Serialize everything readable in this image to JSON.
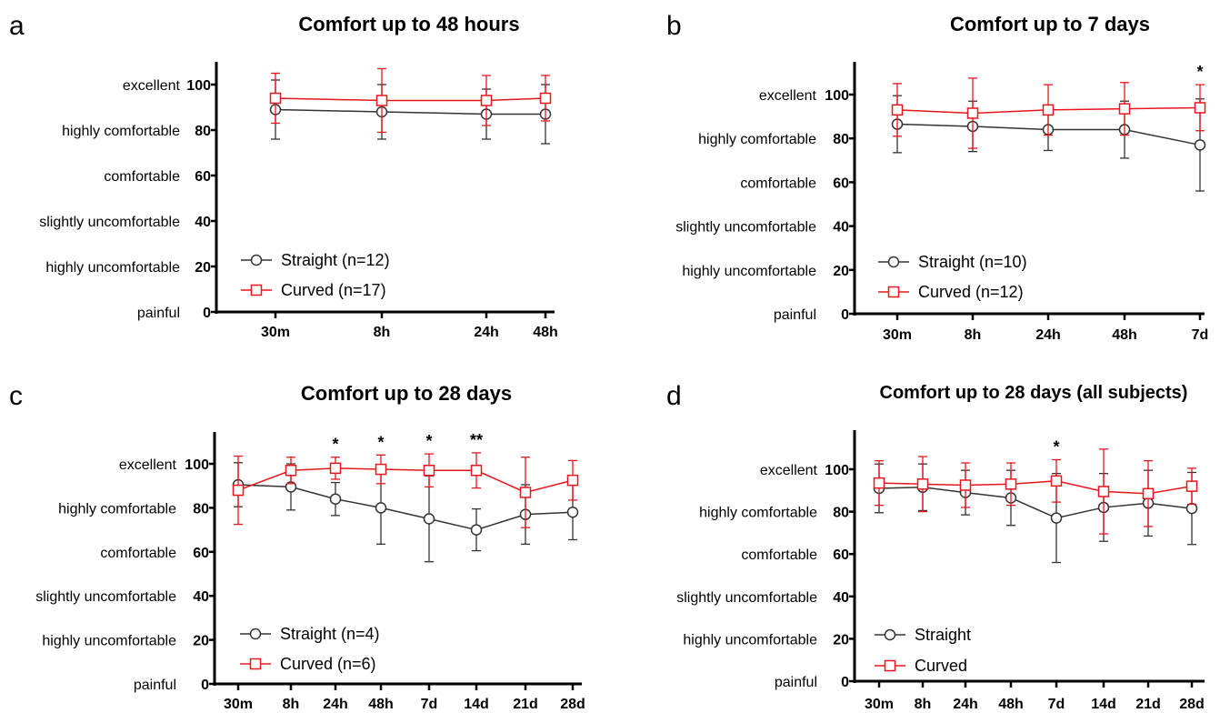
{
  "chart_data": [
    {
      "type": "line",
      "panel_label": "a",
      "title": "Comfort up to 48 hours",
      "categories": [
        "30m",
        "8h",
        "24h",
        "48h"
      ],
      "y_ticks": [
        0,
        20,
        40,
        60,
        80,
        100
      ],
      "y_category_labels": [
        "painful",
        "highly uncomfortable",
        "slightly uncomfortable",
        "comfortable",
        "highly comfortable",
        "excellent"
      ],
      "ylim": [
        0,
        110
      ],
      "legend_position": "bottom-left",
      "series": [
        {
          "name": "Straight (n=12)",
          "color": "#333333",
          "marker": "circle",
          "values": [
            89,
            88,
            87,
            87
          ],
          "error": [
            13,
            12,
            11,
            13
          ]
        },
        {
          "name": "Curved (n=17)",
          "color": "#e8161c",
          "marker": "square",
          "values": [
            94,
            93,
            93,
            94
          ],
          "error": [
            11,
            14,
            11,
            10
          ]
        }
      ],
      "annotations": []
    },
    {
      "type": "line",
      "panel_label": "b",
      "title": "Comfort up to 7 days",
      "categories": [
        "30m",
        "8h",
        "24h",
        "48h",
        "7d"
      ],
      "y_ticks": [
        0,
        20,
        40,
        60,
        80,
        100
      ],
      "y_category_labels": [
        "painful",
        "highly uncomfortable",
        "slightly uncomfortable",
        "comfortable",
        "highly comfortable",
        "excellent"
      ],
      "ylim": [
        0,
        115
      ],
      "legend_position": "bottom-left",
      "series": [
        {
          "name": "Straight (n=10)",
          "color": "#333333",
          "marker": "circle",
          "values": [
            86.5,
            85.5,
            84,
            84,
            77
          ],
          "error": [
            13,
            11.5,
            9.5,
            13,
            21
          ]
        },
        {
          "name": "Curved (n=12)",
          "color": "#e8161c",
          "marker": "square",
          "values": [
            93,
            91.5,
            93,
            93.5,
            94
          ],
          "error": [
            12,
            16,
            11.5,
            12,
            10.5
          ]
        }
      ],
      "annotations": [
        {
          "category": "7d",
          "text": "*"
        }
      ]
    },
    {
      "type": "line",
      "panel_label": "c",
      "title": "Comfort up to 28 days",
      "categories": [
        "30m",
        "8h",
        "24h",
        "48h",
        "7d",
        "14d",
        "21d",
        "28d"
      ],
      "y_ticks": [
        0,
        20,
        40,
        60,
        80,
        100
      ],
      "y_category_labels": [
        "painful",
        "highly uncomfortable",
        "slightly uncomfortable",
        "comfortable",
        "highly comfortable",
        "excellent"
      ],
      "ylim": [
        0,
        115
      ],
      "legend_position": "bottom-left",
      "series": [
        {
          "name": "Straight (n=4)",
          "color": "#333333",
          "marker": "circle",
          "values": [
            90.5,
            89.5,
            84,
            80,
            75,
            70,
            77,
            78
          ],
          "error": [
            10,
            10.5,
            7.5,
            16.5,
            19.5,
            9.5,
            13.5,
            12.5
          ]
        },
        {
          "name": "Curved (n=6)",
          "color": "#e8161c",
          "marker": "square",
          "values": [
            88,
            97,
            98,
            97.5,
            97,
            97,
            87,
            92.5
          ],
          "error": [
            15.5,
            6,
            5,
            6.5,
            7.5,
            8,
            16,
            9
          ]
        }
      ],
      "annotations": [
        {
          "category": "24h",
          "text": "*"
        },
        {
          "category": "48h",
          "text": "*"
        },
        {
          "category": "7d",
          "text": "*"
        },
        {
          "category": "14d",
          "text": "**"
        }
      ]
    },
    {
      "type": "line",
      "panel_label": "d",
      "title": "Comfort up to 28 days (all subjects)",
      "categories": [
        "30m",
        "8h",
        "24h",
        "48h",
        "7d",
        "14d",
        "21d",
        "28d"
      ],
      "y_ticks": [
        0,
        20,
        40,
        60,
        80,
        100
      ],
      "y_category_labels": [
        "painful",
        "highly uncomfortable",
        "slightly uncomfortable",
        "comfortable",
        "highly comfortable",
        "excellent"
      ],
      "ylim": [
        0,
        115
      ],
      "legend_position": "bottom-left",
      "series": [
        {
          "name": "Straight",
          "color": "#333333",
          "marker": "circle",
          "values": [
            91,
            91.5,
            89,
            86.5,
            77,
            82,
            84,
            81.5
          ],
          "error": [
            11.5,
            11,
            10.5,
            13,
            21,
            16,
            15.5,
            17
          ]
        },
        {
          "name": "Curved",
          "color": "#e8161c",
          "marker": "square",
          "values": [
            93.5,
            93,
            92.5,
            93,
            94.5,
            89.5,
            88.5,
            92
          ],
          "error": [
            10.5,
            13,
            10.5,
            10,
            10,
            20,
            15.5,
            8.5
          ]
        }
      ],
      "annotations": [
        {
          "category": "7d",
          "text": "*"
        }
      ]
    }
  ]
}
